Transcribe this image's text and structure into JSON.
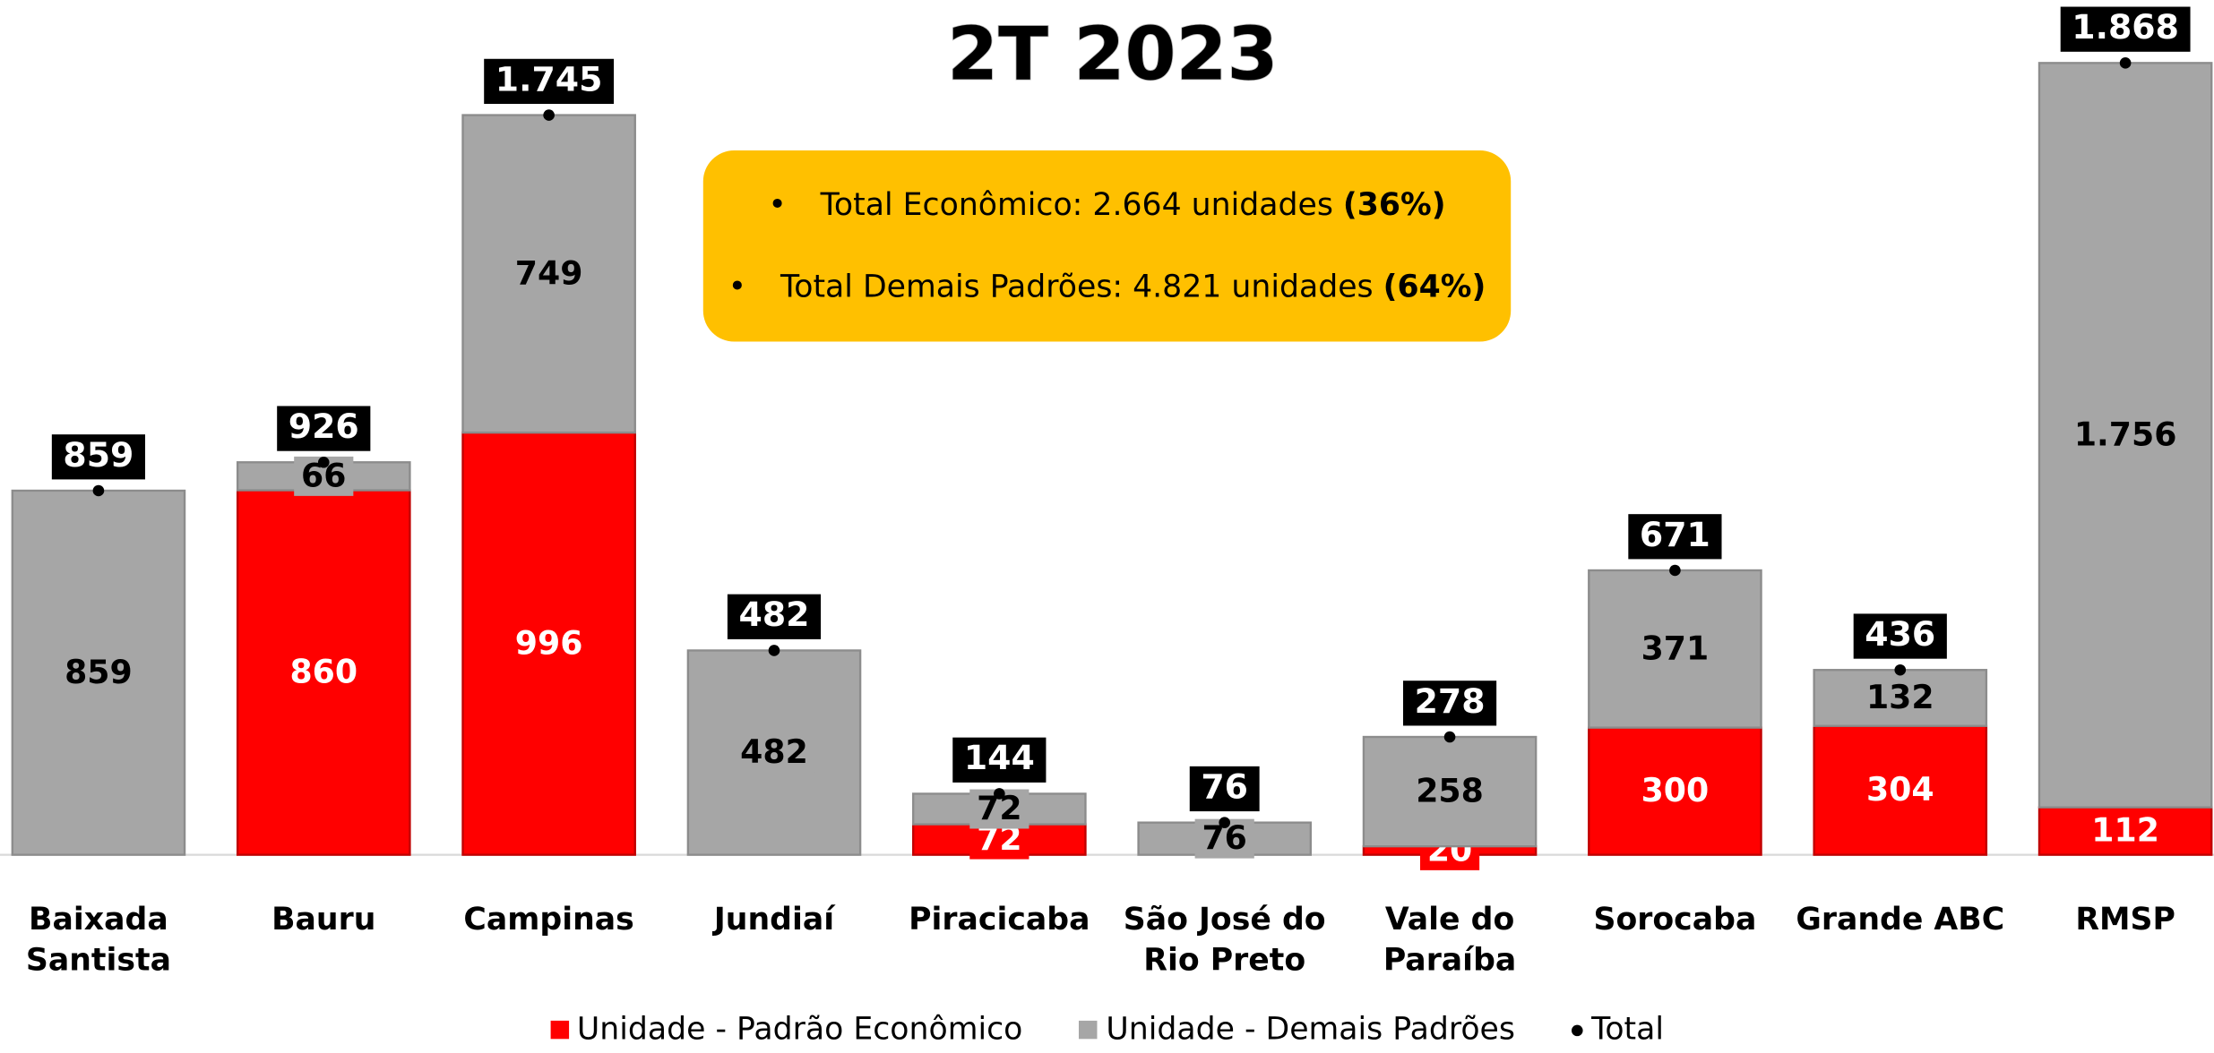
{
  "chart_data": {
    "type": "stacked_bar",
    "title": "2T 2023",
    "categories": [
      "Baixada Santista",
      "Bauru",
      "Campinas",
      "Jundiaí",
      "Piracicaba",
      "São José do Rio Preto",
      "Vale do Paraíba",
      "Sorocaba",
      "Grande ABC",
      "RMSP"
    ],
    "series": [
      {
        "name": "Unidade - Padrão Econômico",
        "color": "#ff0000",
        "values": [
          null,
          860,
          996,
          null,
          72,
          null,
          20,
          300,
          304,
          112
        ]
      },
      {
        "name": "Unidade - Demais Padrões",
        "color": "#a6a6a6",
        "values": [
          859,
          66,
          749,
          482,
          72,
          76,
          258,
          371,
          132,
          1756
        ],
        "value_labels": [
          "859",
          "66",
          "749",
          "482",
          "72",
          "76",
          "258",
          "371",
          "132",
          "1.756"
        ]
      }
    ],
    "totals": {
      "name": "Total",
      "color": "#000000",
      "values": [
        859,
        926,
        1745,
        482,
        144,
        76,
        278,
        671,
        436,
        1868
      ],
      "value_labels": [
        "859",
        "926",
        "1.745",
        "482",
        "144",
        "76",
        "278",
        "671",
        "436",
        "1.868"
      ]
    },
    "ylim": [
      0,
      2000
    ],
    "annotations": [
      {
        "text": "Total Econômico: 2.664 unidades",
        "emphasis": "(36%)"
      },
      {
        "text": "Total Demais Padrões: 4.821 unidades",
        "emphasis": "(64%)"
      }
    ],
    "legend": "bottom"
  }
}
